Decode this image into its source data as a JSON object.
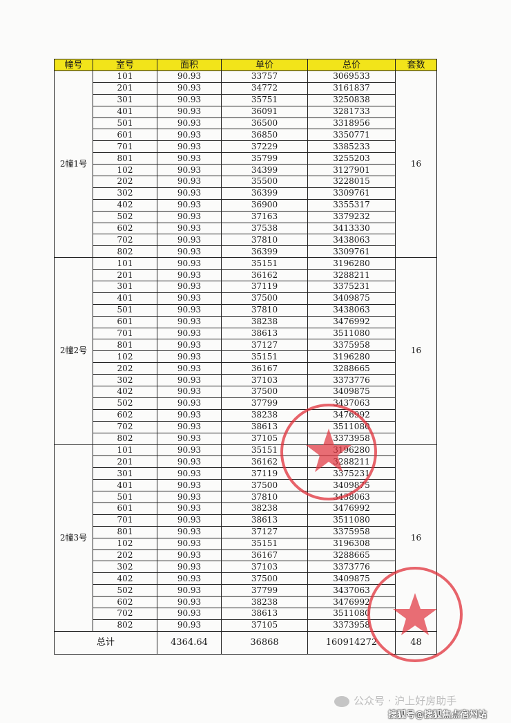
{
  "table": {
    "headers": [
      "幢号",
      "室号",
      "面积",
      "单价",
      "总价",
      "套数"
    ],
    "header_color": "#f2e41a",
    "buildings": [
      {
        "name": "2幢1号",
        "count": "16",
        "rows": [
          [
            "101",
            "90.93",
            "33757",
            "3069533"
          ],
          [
            "201",
            "90.93",
            "34772",
            "3161837"
          ],
          [
            "301",
            "90.93",
            "35751",
            "3250838"
          ],
          [
            "401",
            "90.93",
            "36091",
            "3281733"
          ],
          [
            "501",
            "90.93",
            "36500",
            "3318956"
          ],
          [
            "601",
            "90.93",
            "36850",
            "3350771"
          ],
          [
            "701",
            "90.93",
            "37229",
            "3385233"
          ],
          [
            "801",
            "90.93",
            "35799",
            "3255203"
          ],
          [
            "102",
            "90.93",
            "34399",
            "3127901"
          ],
          [
            "202",
            "90.93",
            "35500",
            "3228015"
          ],
          [
            "302",
            "90.93",
            "36399",
            "3309761"
          ],
          [
            "402",
            "90.93",
            "36900",
            "3355317"
          ],
          [
            "502",
            "90.93",
            "37163",
            "3379232"
          ],
          [
            "602",
            "90.93",
            "37538",
            "3413330"
          ],
          [
            "702",
            "90.93",
            "37810",
            "3438063"
          ],
          [
            "802",
            "90.93",
            "36399",
            "3309761"
          ]
        ]
      },
      {
        "name": "2幢2号",
        "count": "16",
        "rows": [
          [
            "101",
            "90.93",
            "35151",
            "3196280"
          ],
          [
            "201",
            "90.93",
            "36162",
            "3288211"
          ],
          [
            "301",
            "90.93",
            "37119",
            "3375231"
          ],
          [
            "401",
            "90.93",
            "37500",
            "3409875"
          ],
          [
            "501",
            "90.93",
            "37810",
            "3438063"
          ],
          [
            "601",
            "90.93",
            "38238",
            "3476992"
          ],
          [
            "701",
            "90.93",
            "38613",
            "3511080"
          ],
          [
            "801",
            "90.93",
            "37127",
            "3375958"
          ],
          [
            "102",
            "90.93",
            "35151",
            "3196280"
          ],
          [
            "202",
            "90.93",
            "36167",
            "3288665"
          ],
          [
            "302",
            "90.93",
            "37103",
            "3373776"
          ],
          [
            "402",
            "90.93",
            "37500",
            "3409875"
          ],
          [
            "502",
            "90.93",
            "37799",
            "3437063"
          ],
          [
            "602",
            "90.93",
            "38238",
            "3476992"
          ],
          [
            "702",
            "90.93",
            "38613",
            "3511080"
          ],
          [
            "802",
            "90.93",
            "37105",
            "3373958"
          ]
        ]
      },
      {
        "name": "2幢3号",
        "count": "16",
        "rows": [
          [
            "101",
            "90.93",
            "35151",
            "3196280"
          ],
          [
            "201",
            "90.93",
            "36162",
            "3288211"
          ],
          [
            "301",
            "90.93",
            "37119",
            "3375231"
          ],
          [
            "401",
            "90.93",
            "37500",
            "3409875"
          ],
          [
            "501",
            "90.93",
            "37810",
            "3438063"
          ],
          [
            "601",
            "90.93",
            "38238",
            "3476992"
          ],
          [
            "701",
            "90.93",
            "38613",
            "3511080"
          ],
          [
            "801",
            "90.93",
            "37127",
            "3375958"
          ],
          [
            "102",
            "90.93",
            "35151",
            "3196308"
          ],
          [
            "202",
            "90.93",
            "36167",
            "3288665"
          ],
          [
            "302",
            "90.93",
            "37103",
            "3373776"
          ],
          [
            "402",
            "90.93",
            "37500",
            "3409875"
          ],
          [
            "502",
            "90.93",
            "37799",
            "3437063"
          ],
          [
            "602",
            "90.93",
            "38238",
            "3476992"
          ],
          [
            "702",
            "90.93",
            "38613",
            "3511080"
          ],
          [
            "802",
            "90.93",
            "37105",
            "3373958"
          ]
        ]
      }
    ],
    "total": {
      "label": "总计",
      "area": "4364.64",
      "unit_price": "36868",
      "total_price": "160914272",
      "count": "48"
    }
  },
  "stamp_color": "#e0303a",
  "watermark": {
    "wechat": "公众号 · 沪上好房助手",
    "sohu": "搜狐号@搜狐焦点宿州站"
  }
}
